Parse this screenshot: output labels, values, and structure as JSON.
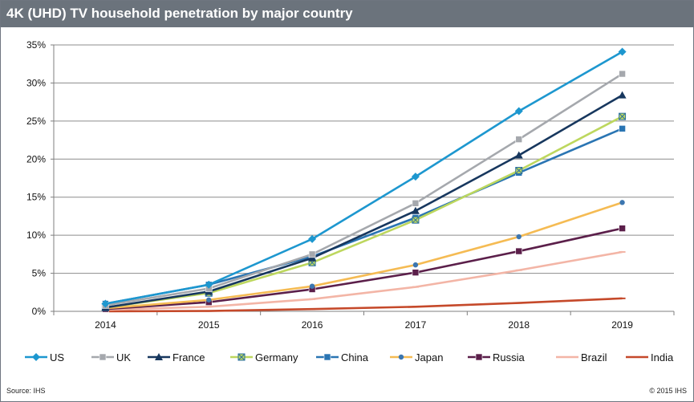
{
  "header": {
    "title": "4K (UHD) TV household penetration by major country"
  },
  "footer": {
    "source": "Source: IHS",
    "copyright": "© 2015 IHS"
  },
  "chart_data": {
    "type": "line",
    "title": "4K (UHD) TV household penetration by major country",
    "xlabel": "",
    "ylabel": "",
    "x": [
      "2014",
      "2015",
      "2016",
      "2017",
      "2018",
      "2019"
    ],
    "ylim": [
      0,
      35
    ],
    "yticks": [
      0,
      5,
      10,
      15,
      20,
      25,
      30,
      35
    ],
    "ytick_labels": [
      "0%",
      "5%",
      "10%",
      "15%",
      "20%",
      "25%",
      "30%",
      "35%"
    ],
    "grid": true,
    "legend_position": "bottom",
    "series": [
      {
        "name": "US",
        "color": "#1d97cf",
        "marker": "diamond",
        "values": [
          1.0,
          3.5,
          9.5,
          17.7,
          26.3,
          34.1
        ]
      },
      {
        "name": "UK",
        "color": "#a5a8ad",
        "marker": "square",
        "values": [
          0.8,
          3.0,
          7.5,
          14.2,
          22.6,
          31.2
        ]
      },
      {
        "name": "France",
        "color": "#17375e",
        "marker": "triangle",
        "values": [
          0.5,
          2.6,
          7.0,
          13.2,
          20.5,
          28.4
        ]
      },
      {
        "name": "Germany",
        "color": "#bdd75e",
        "marker": "xsquare",
        "values": [
          0.5,
          2.4,
          6.4,
          12.0,
          18.5,
          25.6
        ]
      },
      {
        "name": "China",
        "color": "#2a75b3",
        "marker": "square",
        "values": [
          1.0,
          3.5,
          7.2,
          12.3,
          18.2,
          24.0
        ]
      },
      {
        "name": "Japan",
        "color": "#f5bb53",
        "marker": "circle",
        "values": [
          0.4,
          1.5,
          3.3,
          6.1,
          9.8,
          14.3
        ]
      },
      {
        "name": "Russia",
        "color": "#5b1f4a",
        "marker": "square",
        "values": [
          0.3,
          1.2,
          2.9,
          5.1,
          7.9,
          10.9
        ]
      },
      {
        "name": "Brazil",
        "color": "#f3b5a6",
        "marker": "dash",
        "values": [
          0.2,
          0.6,
          1.6,
          3.2,
          5.4,
          7.8
        ]
      },
      {
        "name": "India",
        "color": "#c5492a",
        "marker": "dash",
        "values": [
          0.0,
          0.05,
          0.3,
          0.6,
          1.1,
          1.7
        ]
      }
    ]
  }
}
